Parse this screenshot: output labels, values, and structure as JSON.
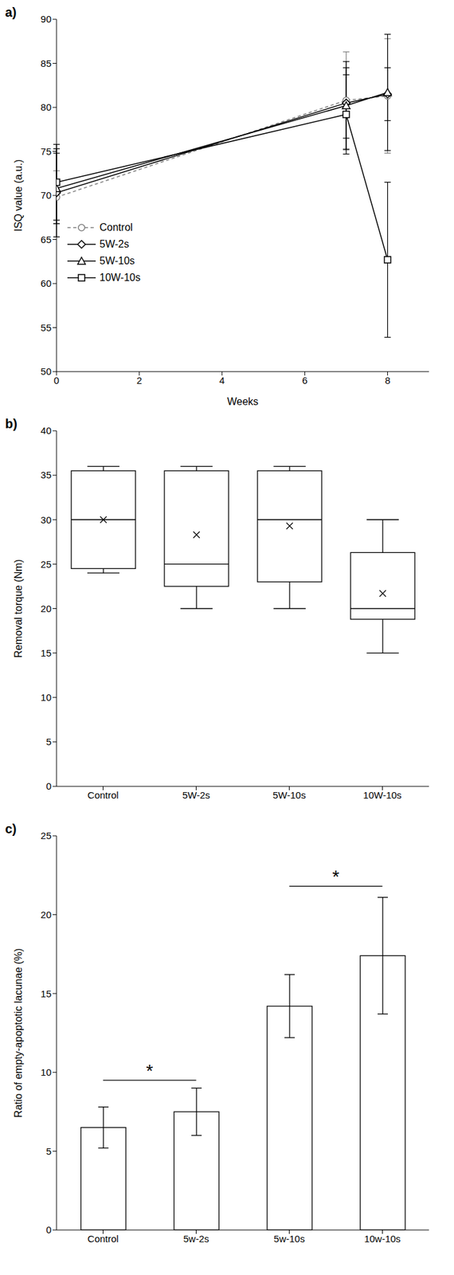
{
  "chart_data": [
    {
      "type": "line",
      "title": "a)",
      "x_label": "Weeks",
      "y_label": "ISQ value (a.u.)",
      "x": [
        0,
        7,
        8
      ],
      "xlim": [
        0,
        9
      ],
      "xticks": [
        0,
        2,
        4,
        6,
        8
      ],
      "ylim": [
        50,
        90
      ],
      "yticks": [
        50,
        55,
        60,
        65,
        70,
        75,
        80,
        85,
        90
      ],
      "legend": "left",
      "series": [
        {
          "name": "Control",
          "color": "#808080",
          "line_style": "dashed",
          "marker": "circle",
          "values": [
            69.8,
            80.8,
            81.3
          ],
          "errors": [
            3.0,
            5.5,
            6.5
          ]
        },
        {
          "name": "5W-2s",
          "color": "#000000",
          "line_style": "solid",
          "marker": "diamond",
          "values": [
            70.3,
            80.5,
            81.5
          ],
          "errors": [
            5.0,
            4.0,
            3.0
          ]
        },
        {
          "name": "5W-10s",
          "color": "#000000",
          "line_style": "solid",
          "marker": "triangle",
          "values": [
            70.8,
            80.2,
            81.7
          ],
          "errors": [
            4.0,
            5.0,
            6.6
          ]
        },
        {
          "name": "10W-10s",
          "color": "#000000",
          "line_style": "solid",
          "marker": "square",
          "values": [
            71.5,
            79.2,
            62.7
          ],
          "errors": [
            4.3,
            4.5,
            8.8
          ]
        }
      ]
    },
    {
      "type": "box",
      "title": "b)",
      "y_label": "Removal torque (Nm)",
      "categories": [
        "Control",
        "5W-2s",
        "5W-10s",
        "10W-10s"
      ],
      "ylim": [
        0,
        40
      ],
      "yticks": [
        0,
        5,
        10,
        15,
        20,
        25,
        30,
        35,
        40
      ],
      "color": "#000000",
      "min": [
        24,
        20,
        20,
        15
      ],
      "q1": [
        24.5,
        22.5,
        23,
        18.8
      ],
      "median": [
        30,
        25,
        30,
        20
      ],
      "q3": [
        35.5,
        35.5,
        35.5,
        26.3
      ],
      "max": [
        36,
        36,
        36,
        30
      ],
      "mean": [
        30,
        28.3,
        29.3,
        21.7
      ]
    },
    {
      "type": "bar",
      "title": "c)",
      "y_label": "Ratio of empty-apoptotic lacunae (%)",
      "categories": [
        "Control",
        "5w-2s",
        "5w-10s",
        "10w-10s"
      ],
      "values": [
        6.5,
        7.5,
        14.2,
        17.4
      ],
      "errors": [
        1.3,
        1.5,
        2.0,
        3.7
      ],
      "color": "#ffffff",
      "ylim": [
        0,
        25
      ],
      "yticks": [
        0,
        5,
        10,
        15,
        20,
        25
      ],
      "annotations": [
        {
          "from": "Control",
          "to": "5w-2s",
          "y": 9.5,
          "text": "*"
        },
        {
          "from": "5w-10s",
          "to": "10w-10s",
          "y": 21.8,
          "text": "*"
        }
      ]
    }
  ]
}
